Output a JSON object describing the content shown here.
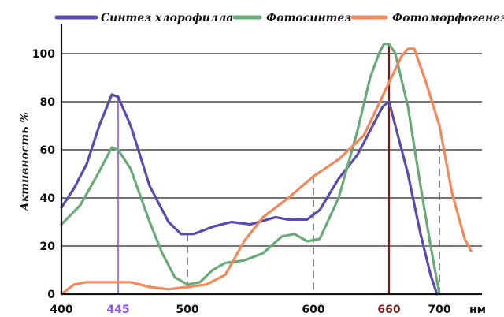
{
  "chart_data": {
    "type": "line",
    "ylabel": "Активность %",
    "xunit": "нм",
    "xlim": [
      400,
      735
    ],
    "ylim": [
      0,
      108
    ],
    "x_ticks": [
      400,
      445,
      500,
      600,
      660,
      700
    ],
    "y_ticks": [
      0,
      20,
      40,
      60,
      80,
      100
    ],
    "grid": "horizontal",
    "legend_position": "top",
    "series": [
      {
        "name": "Синтез хлорофилла",
        "color": "#5b4ab0",
        "points": [
          [
            400,
            36
          ],
          [
            410,
            44
          ],
          [
            420,
            54
          ],
          [
            430,
            70
          ],
          [
            440,
            83
          ],
          [
            445,
            82
          ],
          [
            455,
            70
          ],
          [
            470,
            45
          ],
          [
            485,
            30
          ],
          [
            495,
            25
          ],
          [
            505,
            25
          ],
          [
            520,
            28
          ],
          [
            535,
            30
          ],
          [
            550,
            29
          ],
          [
            570,
            32
          ],
          [
            580,
            31
          ],
          [
            595,
            31
          ],
          [
            605,
            35
          ],
          [
            620,
            48
          ],
          [
            635,
            58
          ],
          [
            645,
            68
          ],
          [
            655,
            78
          ],
          [
            660,
            80
          ],
          [
            665,
            70
          ],
          [
            675,
            50
          ],
          [
            685,
            25
          ],
          [
            693,
            8
          ],
          [
            698,
            0
          ]
        ]
      },
      {
        "name": "Фотосинтез",
        "color": "#6aaa78",
        "points": [
          [
            400,
            29
          ],
          [
            415,
            37
          ],
          [
            430,
            51
          ],
          [
            440,
            61
          ],
          [
            445,
            60
          ],
          [
            455,
            52
          ],
          [
            470,
            30
          ],
          [
            480,
            17
          ],
          [
            490,
            7
          ],
          [
            500,
            4
          ],
          [
            510,
            5
          ],
          [
            520,
            10
          ],
          [
            530,
            13
          ],
          [
            545,
            14
          ],
          [
            560,
            17
          ],
          [
            575,
            24
          ],
          [
            585,
            25
          ],
          [
            595,
            22
          ],
          [
            605,
            23
          ],
          [
            620,
            40
          ],
          [
            635,
            68
          ],
          [
            645,
            90
          ],
          [
            652,
            100
          ],
          [
            656,
            104
          ],
          [
            660,
            104
          ],
          [
            665,
            100
          ],
          [
            675,
            78
          ],
          [
            685,
            45
          ],
          [
            693,
            20
          ],
          [
            700,
            0
          ]
        ]
      },
      {
        "name": "Фотоморфогенез",
        "color": "#f3885a",
        "points": [
          [
            400,
            0
          ],
          [
            410,
            4
          ],
          [
            420,
            5
          ],
          [
            440,
            5
          ],
          [
            455,
            5
          ],
          [
            470,
            3
          ],
          [
            485,
            2
          ],
          [
            500,
            3
          ],
          [
            515,
            4
          ],
          [
            530,
            8
          ],
          [
            545,
            22
          ],
          [
            560,
            32
          ],
          [
            580,
            40
          ],
          [
            600,
            49
          ],
          [
            620,
            56
          ],
          [
            640,
            66
          ],
          [
            650,
            77
          ],
          [
            660,
            88
          ],
          [
            670,
            99
          ],
          [
            675,
            102
          ],
          [
            680,
            102
          ],
          [
            690,
            87
          ],
          [
            700,
            70
          ],
          [
            710,
            42
          ],
          [
            720,
            23
          ],
          [
            725,
            18
          ]
        ]
      }
    ],
    "markers": [
      {
        "x": 445,
        "color": "#8a55f0"
      },
      {
        "x": 500,
        "color": "#555555"
      },
      {
        "x": 600,
        "color": "#555555"
      },
      {
        "x": 660,
        "color": "#7a1b1b"
      },
      {
        "x": 700,
        "color": "#555555"
      }
    ],
    "tick_label_colors": {
      "445": "#8a55f0",
      "660": "#7a1b1b"
    }
  }
}
